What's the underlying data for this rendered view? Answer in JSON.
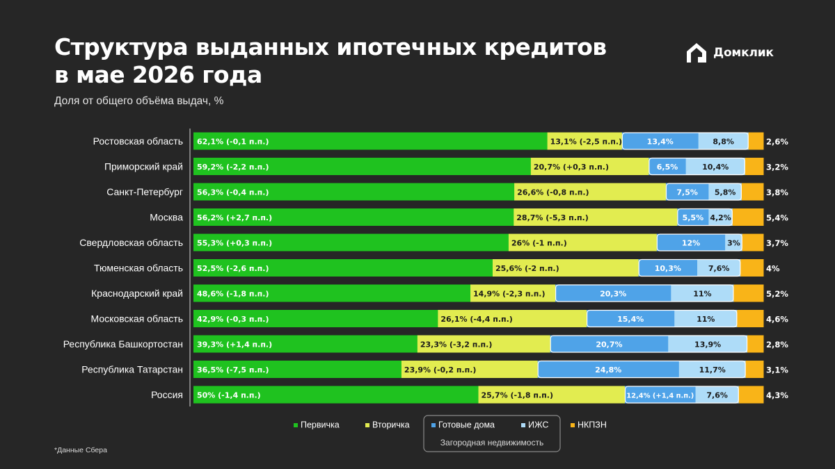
{
  "title_line1": "Структура выданных ипотечных кредитов",
  "title_line2": "в мае 2026 года",
  "subtitle": "Доля от общего объёма выдач, %",
  "brand": {
    "name": "Домклик",
    "icon": "domclick-house-logo"
  },
  "footnote": "*Данные Сбера",
  "colors": {
    "background": "#262626",
    "primary": "#1FC21F",
    "secondary": "#E2EC50",
    "ready_houses": "#4FA3E8",
    "izhs": "#AEDCF8",
    "nkpzn": "#F9B418"
  },
  "chart_data": {
    "type": "bar",
    "orientation": "horizontal",
    "stacked": true,
    "normalized": true,
    "categories": [
      "Ростовская область",
      "Приморский край",
      "Санкт-Петербург",
      "Москва",
      "Свердловская область",
      "Тюменская область",
      "Краснодарский край",
      "Московская область",
      "Республика Башкортостан",
      "Республика Татарстан",
      "Россия"
    ],
    "series": [
      {
        "name": "Первичка",
        "color": "#1FC21F",
        "values": [
          62.1,
          59.2,
          56.3,
          56.2,
          55.3,
          52.5,
          48.6,
          42.9,
          39.3,
          36.5,
          50
        ],
        "labels": [
          "62,1% (-0,1 п.п.)",
          "59,2% (-2,2 п.п.)",
          "56,3% (-0,4 п.п.)",
          "56,2% (+2,7 п.п.)",
          "55,3% (+0,3 п.п.)",
          "52,5% (-2,6 п.п.)",
          "48,6% (-1,8 п.п.)",
          "42,9% (-0,3 п.п.)",
          "39,3% (+1,4 п.п.)",
          "36,5% (-7,5 п.п.)",
          "50% (-1,4 п.п.)"
        ]
      },
      {
        "name": "Вторичка",
        "color": "#E2EC50",
        "values": [
          13.1,
          20.7,
          26.6,
          28.7,
          26,
          25.6,
          14.9,
          26.1,
          23.3,
          23.9,
          25.7
        ],
        "labels": [
          "13,1% (-2,5 п.п.)",
          "20,7% (+0,3 п.п.)",
          "26,6% (-0,8 п.п.)",
          "28,7% (-5,3 п.п.)",
          "26% (-1 п.п.)",
          "25,6% (-2 п.п.)",
          "14,9% (-2,3 п.п.)",
          "26,1% (-4,4 п.п.)",
          "23,3% (-3,2 п.п.)",
          "23,9% (-0,2 п.п.)",
          "25,7% (-1,8 п.п.)"
        ]
      },
      {
        "name": "Готовые дома",
        "color": "#4FA3E8",
        "values": [
          13.4,
          6.5,
          7.5,
          5.5,
          12,
          10.3,
          20.3,
          15.4,
          20.7,
          24.8,
          12.4
        ],
        "labels": [
          "13,4%",
          "6,5%",
          "7,5%",
          "5,5%",
          "12%",
          "10,3%",
          "20,3%",
          "15,4%",
          "20,7%",
          "24,8%",
          "12,4% (+1,4 п.п.)"
        ]
      },
      {
        "name": "ИЖС",
        "color": "#AEDCF8",
        "values": [
          8.8,
          10.4,
          5.8,
          4.2,
          3,
          7.6,
          11,
          11,
          13.9,
          11.7,
          7.6
        ],
        "labels": [
          "8,8%",
          "10,4%",
          "5,8%",
          "4,2%",
          "3%",
          "7,6%",
          "11%",
          "11%",
          "13,9%",
          "11,7%",
          "7,6%"
        ]
      },
      {
        "name": "НКПЗН",
        "color": "#F9B418",
        "values": [
          2.6,
          3.2,
          3.8,
          5.4,
          3.7,
          4,
          5.2,
          4.6,
          2.8,
          3.1,
          4.3
        ],
        "labels": [
          "2,6%",
          "3,2%",
          "3,8%",
          "5,4%",
          "3,7%",
          "4%",
          "5,2%",
          "4,6%",
          "2,8%",
          "3,1%",
          "4,3%"
        ]
      }
    ],
    "legend": {
      "position": "bottom",
      "items": [
        "Первичка",
        "Вторичка",
        "Готовые дома",
        "ИЖС",
        "НКПЗН"
      ],
      "group_label": "Загородная недвижимость",
      "group_items": [
        "Готовые дома",
        "ИЖС"
      ]
    },
    "xlim": [
      0,
      100
    ],
    "grid": false
  }
}
